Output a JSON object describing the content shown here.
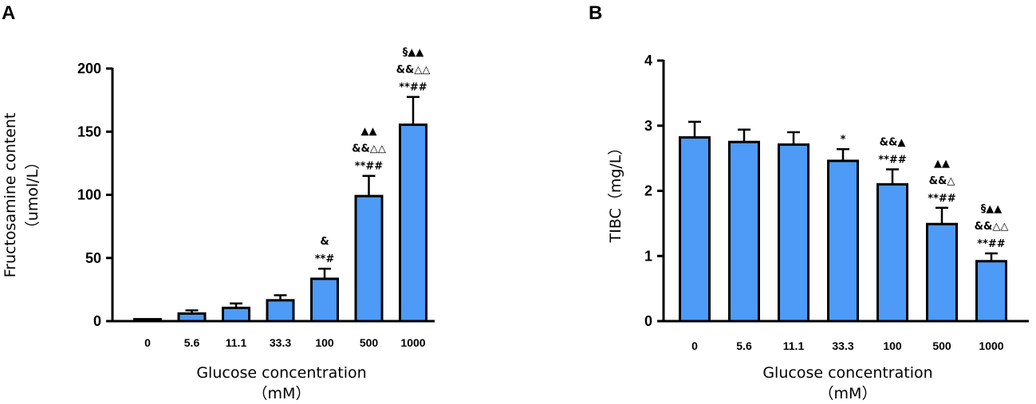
{
  "chart_data": [
    {
      "panel": "A",
      "type": "bar",
      "xlabel_line1": "Glucose concentration",
      "xlabel_line2": "（mM）",
      "ylabel_line1": "Fructosamine content",
      "ylabel_line2": "（umol/L）",
      "ylim": [
        0,
        200
      ],
      "yticks": [
        "0",
        "50",
        "100",
        "150",
        "200"
      ],
      "categories": [
        "0",
        "5.6",
        "11.1",
        "33.3",
        "100",
        "500",
        "1000"
      ],
      "values": [
        1.5,
        6,
        10.5,
        16.5,
        33.5,
        99,
        155.5
      ],
      "errors": [
        0.8,
        2.5,
        3.5,
        4,
        8,
        16,
        22
      ],
      "annotations": [
        [],
        [],
        [],
        [],
        [
          "&",
          "**#"
        ],
        [
          "▲▲",
          "&&△△",
          "**##"
        ],
        [
          "§▲▲",
          "&&△△",
          "**##"
        ]
      ]
    },
    {
      "panel": "B",
      "type": "bar",
      "xlabel_line1": "Glucose concentration",
      "xlabel_line2": "（mM）",
      "ylabel_line1": "TIBC（mg/L）",
      "ylim": [
        0,
        4
      ],
      "yticks": [
        "0",
        "1",
        "2",
        "3",
        "4"
      ],
      "categories": [
        "0",
        "5.6",
        "11.1",
        "33.3",
        "100",
        "500",
        "1000"
      ],
      "values": [
        2.82,
        2.75,
        2.71,
        2.46,
        2.1,
        1.49,
        0.92
      ],
      "errors": [
        0.24,
        0.19,
        0.19,
        0.18,
        0.23,
        0.25,
        0.12
      ],
      "annotations": [
        [],
        [],
        [],
        [
          "*"
        ],
        [
          "&&▲",
          "**##"
        ],
        [
          "▲▲",
          "&&△",
          "**##"
        ],
        [
          "§▲▲",
          "&&△△",
          "**##"
        ]
      ]
    }
  ]
}
